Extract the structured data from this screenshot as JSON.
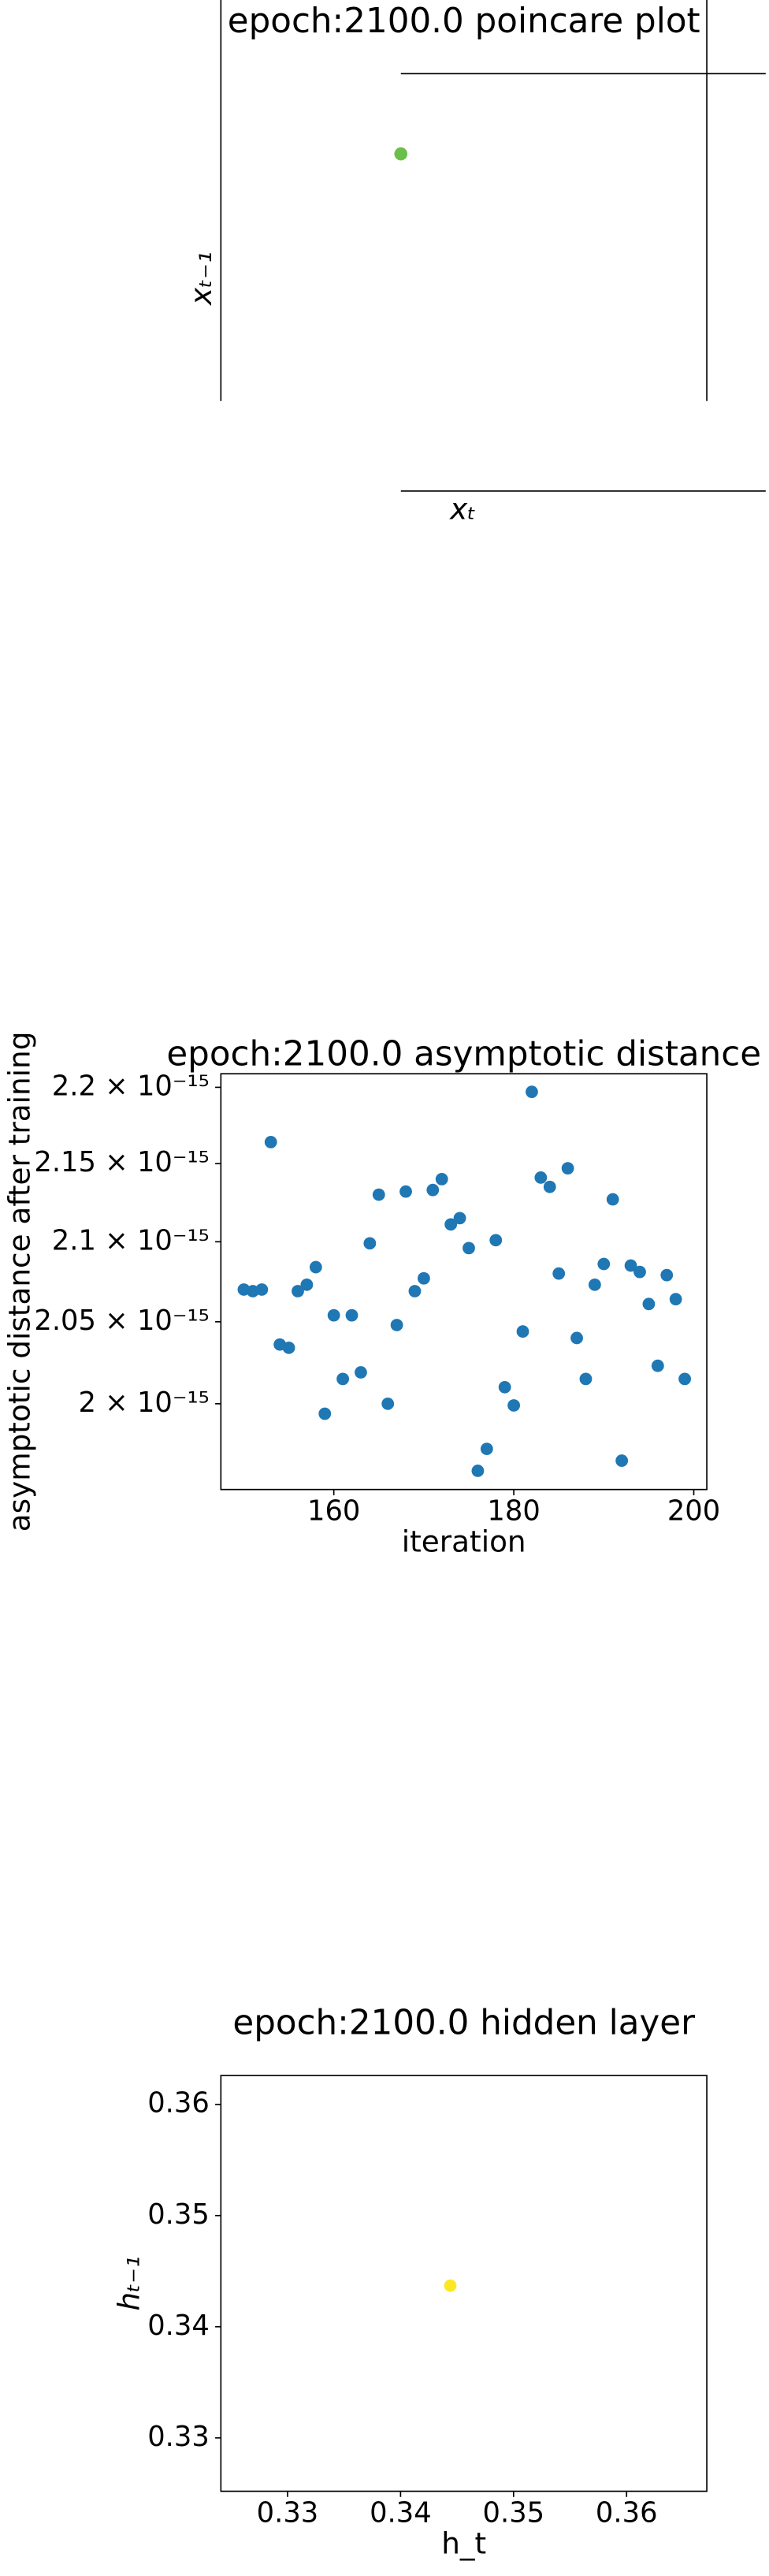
{
  "chart_data": [
    {
      "type": "scatter",
      "title": "epoch:2100.0 poincare plot",
      "xlabel": "xₜ",
      "ylabel": "xₜ₋₁",
      "series": [
        {
          "color": "#6abf4b",
          "x": [
            0
          ],
          "values": [
            0
          ]
        }
      ]
    },
    {
      "type": "scatter",
      "title": "epoch:2100.0 asymptotic distance",
      "xlabel": "iteration",
      "ylabel": "asymptotic distance after training",
      "log_y": true,
      "xlim": [
        147.45,
        201.45
      ],
      "xticks": [
        160,
        180,
        200
      ],
      "ylim": [
        1.949e-15,
        2.209e-15
      ],
      "yticks": [
        {
          "value": 2e-15,
          "label": "2 × 10⁻¹⁵"
        },
        {
          "value": 2.05e-15,
          "label": "2.05 × 10⁻¹⁵"
        },
        {
          "value": 2.1e-15,
          "label": "2.1 × 10⁻¹⁵"
        },
        {
          "value": 2.15e-15,
          "label": "2.15 × 10⁻¹⁵"
        },
        {
          "value": 2.2e-15,
          "label": "2.2 × 10⁻¹⁵"
        }
      ],
      "series": [
        {
          "color": "#1f77b4",
          "x": [
            150,
            151,
            152,
            153,
            154,
            155,
            156,
            157,
            158,
            159,
            160,
            161,
            162,
            163,
            164,
            165,
            166,
            167,
            168,
            169,
            170,
            171,
            172,
            173,
            174,
            175,
            176,
            177,
            178,
            179,
            180,
            181,
            182,
            183,
            184,
            185,
            186,
            187,
            188,
            189,
            190,
            191,
            192,
            193,
            194,
            195,
            196,
            197,
            198,
            199
          ],
          "values": [
            2.07e-15,
            2.069e-15,
            2.07e-15,
            2.164e-15,
            2.036e-15,
            2.034e-15,
            2.069e-15,
            2.073e-15,
            2.084e-15,
            1.994e-15,
            2.054e-15,
            2.015e-15,
            2.054e-15,
            2.019e-15,
            2.099e-15,
            2.13e-15,
            2e-15,
            2.048e-15,
            2.132e-15,
            2.069e-15,
            2.077e-15,
            2.133e-15,
            2.14e-15,
            2.111e-15,
            2.115e-15,
            2.096e-15,
            1.96e-15,
            1.973e-15,
            2.101e-15,
            2.01e-15,
            1.999e-15,
            2.044e-15,
            2.197e-15,
            2.141e-15,
            2.135e-15,
            2.08e-15,
            2.147e-15,
            2.04e-15,
            2.015e-15,
            2.073e-15,
            2.086e-15,
            2.127e-15,
            1.966e-15,
            2.085e-15,
            2.081e-15,
            2.061e-15,
            2.023e-15,
            2.079e-15,
            2.064e-15,
            2.015e-15
          ]
        }
      ]
    },
    {
      "type": "scatter",
      "title": "epoch:2100.0 hidden layer",
      "xlabel": "h_t",
      "ylabel": "hₜ₋₁",
      "xlim": [
        0.3241,
        0.3671
      ],
      "xticks": [
        0.33,
        0.34,
        0.35,
        0.36
      ],
      "ylim": [
        0.3252,
        0.3626
      ],
      "yticks": [
        0.33,
        0.34,
        0.35,
        0.36
      ],
      "series": [
        {
          "color": "#fde725",
          "x": [
            0.3444
          ],
          "values": [
            0.3437
          ]
        }
      ]
    }
  ]
}
